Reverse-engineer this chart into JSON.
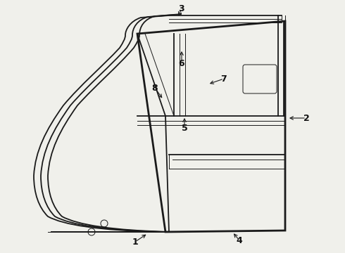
{
  "background_color": "#f0f0eb",
  "line_color": "#1a1a1a",
  "label_color": "#111111",
  "lw_main": 1.3,
  "lw_thick": 2.0,
  "lw_thin": 0.7,
  "lw_seal": 1.1
}
